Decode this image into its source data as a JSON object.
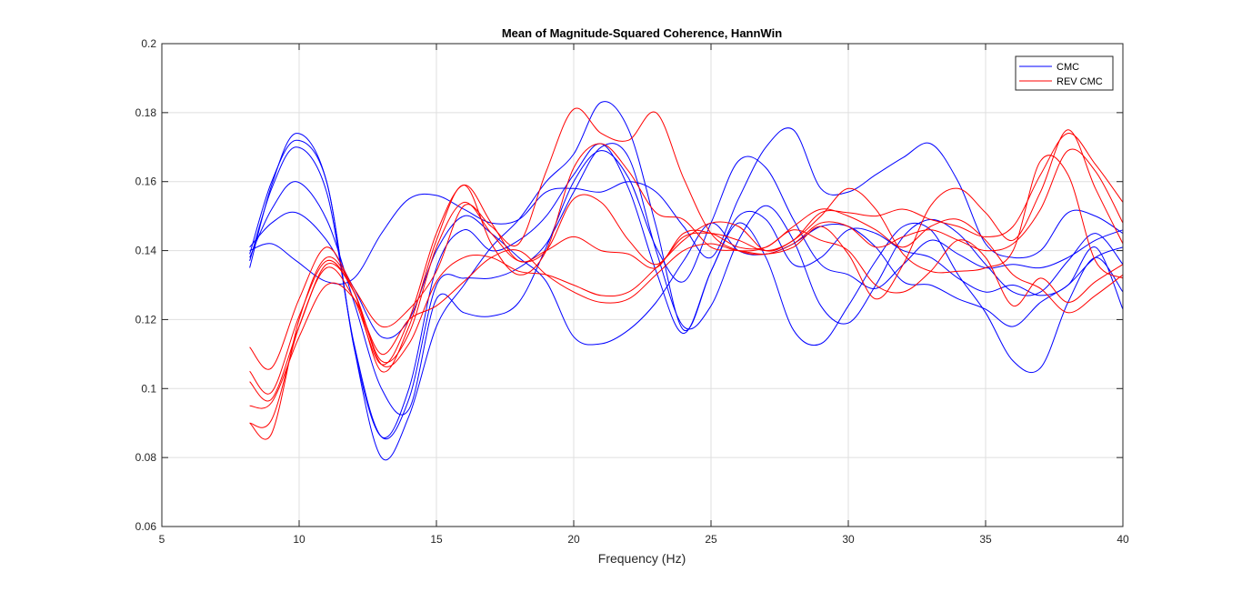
{
  "chart_data": {
    "type": "line",
    "title": "Mean of Magnitude-Squared Coherence, HannWin",
    "xlabel": "Frequency (Hz)",
    "ylabel": "",
    "xlim": [
      5,
      40
    ],
    "ylim": [
      0.06,
      0.2
    ],
    "xticks": [
      5,
      10,
      15,
      20,
      25,
      30,
      35,
      40
    ],
    "xtick_labels": [
      "5",
      "10",
      "15",
      "20",
      "25",
      "30",
      "35",
      "40"
    ],
    "yticks": [
      0.06,
      0.08,
      0.1,
      0.12,
      0.14,
      0.16,
      0.18,
      0.2
    ],
    "ytick_labels": [
      "0.06",
      "0.08",
      "0.1",
      "0.12",
      "0.14",
      "0.16",
      "0.18",
      "0.2"
    ],
    "grid": true,
    "legend": {
      "position": "top-right",
      "entries": [
        {
          "label": "CMC",
          "color": "#0000ff"
        },
        {
          "label": "REV CMC",
          "color": "#ff0000"
        }
      ]
    },
    "series": [
      {
        "group": "CMC",
        "color": "#0000ff",
        "x": [
          8.2,
          9,
          9.9,
          11,
          12,
          13,
          14,
          15,
          16,
          17,
          18,
          19,
          20,
          21,
          22,
          23,
          24,
          25,
          26,
          27,
          28,
          29,
          30,
          31,
          32,
          33,
          34,
          35,
          36,
          37,
          38,
          39,
          40
        ],
        "y": [
          0.14,
          0.142,
          0.137,
          0.131,
          0.132,
          0.145,
          0.155,
          0.156,
          0.152,
          0.148,
          0.149,
          0.157,
          0.158,
          0.157,
          0.16,
          0.157,
          0.147,
          0.138,
          0.155,
          0.17,
          0.175,
          0.158,
          0.157,
          0.162,
          0.167,
          0.171,
          0.16,
          0.142,
          0.138,
          0.14,
          0.151,
          0.15,
          0.145
        ]
      },
      {
        "group": "CMC",
        "color": "#0000ff",
        "x": [
          8.2,
          9,
          9.9,
          11,
          12,
          13,
          14,
          15,
          16,
          17,
          18,
          19,
          20,
          21,
          22,
          23,
          24,
          25,
          26,
          27,
          28,
          29,
          30,
          31,
          32,
          33,
          34,
          35,
          36,
          37,
          38,
          39,
          40
        ],
        "y": [
          0.141,
          0.148,
          0.151,
          0.143,
          0.129,
          0.115,
          0.12,
          0.14,
          0.15,
          0.145,
          0.138,
          0.131,
          0.115,
          0.113,
          0.117,
          0.125,
          0.137,
          0.148,
          0.14,
          0.139,
          0.142,
          0.147,
          0.147,
          0.141,
          0.131,
          0.13,
          0.126,
          0.123,
          0.118,
          0.125,
          0.13,
          0.138,
          0.141
        ]
      },
      {
        "group": "CMC",
        "color": "#0000ff",
        "x": [
          8.2,
          9,
          9.9,
          11,
          12,
          13,
          14,
          15,
          16,
          17,
          18,
          19,
          20,
          21,
          22,
          23,
          24,
          25,
          26,
          27,
          28,
          29,
          30,
          31,
          32,
          33,
          34,
          35,
          36,
          37,
          38,
          39,
          40
        ],
        "y": [
          0.138,
          0.152,
          0.16,
          0.149,
          0.125,
          0.1,
          0.094,
          0.126,
          0.122,
          0.121,
          0.125,
          0.141,
          0.16,
          0.169,
          0.161,
          0.141,
          0.131,
          0.148,
          0.166,
          0.164,
          0.149,
          0.136,
          0.133,
          0.129,
          0.136,
          0.143,
          0.139,
          0.135,
          0.136,
          0.135,
          0.138,
          0.143,
          0.146
        ]
      },
      {
        "group": "CMC",
        "color": "#0000ff",
        "x": [
          8.2,
          9,
          9.9,
          11,
          12,
          13,
          14,
          15,
          16,
          17,
          18,
          19,
          20,
          21,
          22,
          23,
          24,
          25,
          26,
          27,
          28,
          29,
          30,
          31,
          32,
          33,
          34,
          35,
          36,
          37,
          38,
          39,
          40
        ],
        "y": [
          0.137,
          0.158,
          0.17,
          0.157,
          0.113,
          0.086,
          0.097,
          0.13,
          0.132,
          0.132,
          0.135,
          0.142,
          0.157,
          0.17,
          0.167,
          0.14,
          0.118,
          0.124,
          0.143,
          0.153,
          0.143,
          0.124,
          0.119,
          0.13,
          0.144,
          0.149,
          0.145,
          0.136,
          0.128,
          0.128,
          0.137,
          0.145,
          0.136
        ]
      },
      {
        "group": "CMC",
        "color": "#0000ff",
        "x": [
          8.2,
          9,
          9.9,
          11,
          12,
          13,
          14,
          15,
          16,
          17,
          18,
          19,
          20,
          21,
          22,
          23,
          24,
          25,
          26,
          27,
          28,
          29,
          30,
          31,
          32,
          33,
          34,
          35,
          36,
          37,
          38,
          39,
          40
        ],
        "y": [
          0.139,
          0.16,
          0.172,
          0.16,
          0.112,
          0.086,
          0.1,
          0.135,
          0.146,
          0.14,
          0.143,
          0.15,
          0.162,
          0.171,
          0.158,
          0.134,
          0.116,
          0.134,
          0.148,
          0.138,
          0.117,
          0.113,
          0.124,
          0.137,
          0.147,
          0.146,
          0.133,
          0.122,
          0.108,
          0.106,
          0.125,
          0.138,
          0.128
        ]
      },
      {
        "group": "CMC",
        "color": "#0000ff",
        "x": [
          8.2,
          9,
          9.9,
          11,
          12,
          13,
          14,
          15,
          16,
          17,
          18,
          19,
          20,
          21,
          22,
          23,
          24,
          25,
          26,
          27,
          28,
          29,
          30,
          31,
          32,
          33,
          34,
          35,
          36,
          37,
          38,
          39,
          40
        ],
        "y": [
          0.135,
          0.159,
          0.174,
          0.16,
          0.112,
          0.08,
          0.092,
          0.118,
          0.13,
          0.141,
          0.149,
          0.16,
          0.168,
          0.183,
          0.175,
          0.147,
          0.117,
          0.134,
          0.15,
          0.149,
          0.136,
          0.138,
          0.146,
          0.145,
          0.14,
          0.138,
          0.132,
          0.128,
          0.13,
          0.127,
          0.13,
          0.141,
          0.123
        ]
      },
      {
        "group": "REV CMC",
        "color": "#ff0000",
        "x": [
          8.2,
          9,
          10,
          11,
          12,
          13,
          14,
          15,
          16,
          17,
          18,
          19,
          20,
          21,
          22,
          23,
          24,
          25,
          26,
          27,
          28,
          29,
          30,
          31,
          32,
          33,
          34,
          35,
          36,
          37,
          38,
          39,
          40
        ],
        "y": [
          0.112,
          0.106,
          0.126,
          0.141,
          0.129,
          0.118,
          0.123,
          0.134,
          0.153,
          0.147,
          0.142,
          0.163,
          0.181,
          0.174,
          0.172,
          0.18,
          0.161,
          0.145,
          0.14,
          0.139,
          0.142,
          0.148,
          0.147,
          0.141,
          0.144,
          0.146,
          0.143,
          0.14,
          0.142,
          0.152,
          0.169,
          0.163,
          0.148
        ]
      },
      {
        "group": "REV CMC",
        "color": "#ff0000",
        "x": [
          8.2,
          9,
          10,
          11,
          12,
          13,
          14,
          15,
          16,
          17,
          18,
          19,
          20,
          21,
          22,
          23,
          24,
          25,
          26,
          27,
          28,
          29,
          30,
          31,
          32,
          33,
          34,
          35,
          36,
          37,
          38,
          39,
          40
        ],
        "y": [
          0.105,
          0.099,
          0.121,
          0.137,
          0.128,
          0.108,
          0.116,
          0.141,
          0.154,
          0.145,
          0.137,
          0.14,
          0.155,
          0.154,
          0.143,
          0.136,
          0.144,
          0.145,
          0.143,
          0.14,
          0.143,
          0.151,
          0.151,
          0.15,
          0.152,
          0.149,
          0.147,
          0.144,
          0.147,
          0.162,
          0.174,
          0.165,
          0.154
        ]
      },
      {
        "group": "REV CMC",
        "color": "#ff0000",
        "x": [
          8.2,
          9,
          10,
          11,
          12,
          13,
          14,
          15,
          16,
          17,
          18,
          19,
          20,
          21,
          22,
          23,
          24,
          25,
          26,
          27,
          28,
          29,
          30,
          31,
          32,
          33,
          34,
          35,
          36,
          37,
          38,
          39,
          40
        ],
        "y": [
          0.102,
          0.097,
          0.118,
          0.136,
          0.128,
          0.107,
          0.113,
          0.131,
          0.138,
          0.138,
          0.134,
          0.133,
          0.13,
          0.127,
          0.128,
          0.135,
          0.143,
          0.148,
          0.147,
          0.14,
          0.143,
          0.15,
          0.158,
          0.152,
          0.139,
          0.134,
          0.134,
          0.135,
          0.14,
          0.166,
          0.162,
          0.137,
          0.132
        ]
      },
      {
        "group": "REV CMC",
        "color": "#ff0000",
        "x": [
          8.2,
          9,
          10,
          11,
          12,
          13,
          14,
          15,
          16,
          17,
          18,
          19,
          20,
          21,
          22,
          23,
          24,
          25,
          26,
          27,
          28,
          29,
          30,
          31,
          32,
          33,
          34,
          35,
          36,
          37,
          38,
          39,
          40
        ],
        "y": [
          0.09,
          0.087,
          0.12,
          0.138,
          0.128,
          0.105,
          0.118,
          0.143,
          0.159,
          0.142,
          0.133,
          0.14,
          0.164,
          0.171,
          0.163,
          0.151,
          0.149,
          0.141,
          0.14,
          0.139,
          0.141,
          0.147,
          0.139,
          0.126,
          0.136,
          0.153,
          0.158,
          0.151,
          0.143,
          0.157,
          0.175,
          0.158,
          0.142
        ]
      },
      {
        "group": "REV CMC",
        "color": "#ff0000",
        "x": [
          8.2,
          9,
          10,
          11,
          12,
          13,
          14,
          15,
          16,
          17,
          18,
          19,
          20,
          21,
          22,
          23,
          24,
          25,
          26,
          27,
          28,
          29,
          30,
          31,
          32,
          33,
          34,
          35,
          36,
          37,
          38,
          39,
          40
        ],
        "y": [
          0.09,
          0.091,
          0.118,
          0.135,
          0.126,
          0.107,
          0.12,
          0.145,
          0.159,
          0.148,
          0.137,
          0.14,
          0.144,
          0.14,
          0.139,
          0.135,
          0.145,
          0.145,
          0.141,
          0.141,
          0.146,
          0.143,
          0.14,
          0.13,
          0.128,
          0.134,
          0.143,
          0.138,
          0.124,
          0.132,
          0.125,
          0.131,
          0.136
        ]
      },
      {
        "group": "REV CMC",
        "color": "#ff0000",
        "x": [
          8.2,
          9,
          10,
          11,
          12,
          13,
          14,
          15,
          16,
          17,
          18,
          19,
          20,
          21,
          22,
          23,
          24,
          25,
          26,
          27,
          28,
          29,
          30,
          31,
          32,
          33,
          34,
          35,
          36,
          37,
          38,
          39,
          40
        ],
        "y": [
          0.095,
          0.096,
          0.115,
          0.13,
          0.126,
          0.11,
          0.12,
          0.124,
          0.131,
          0.138,
          0.14,
          0.133,
          0.128,
          0.125,
          0.126,
          0.133,
          0.14,
          0.142,
          0.14,
          0.141,
          0.147,
          0.152,
          0.15,
          0.146,
          0.141,
          0.147,
          0.149,
          0.143,
          0.133,
          0.129,
          0.122,
          0.127,
          0.133
        ]
      }
    ]
  }
}
